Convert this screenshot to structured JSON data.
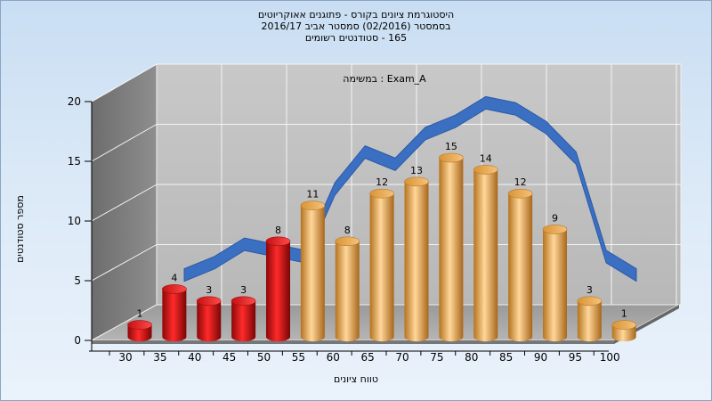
{
  "chart_data": {
    "type": "bar",
    "title_lines": [
      "היסטוגרמת ציונים בקורס - פתוגנים אאוקריוטים",
      "בסמסטר  (02/2016)  סמסטר אביב 2016/17",
      "165 - סטודנטים רשומים"
    ],
    "series_label": "במשימה : Exam_A",
    "xlabel": "טווח ציונים",
    "ylabel": "מספר סטודנטים",
    "categories": [
      "30",
      "35",
      "40",
      "45",
      "50",
      "55",
      "60",
      "65",
      "70",
      "75",
      "80",
      "85",
      "90",
      "95",
      "100"
    ],
    "values": [
      1,
      4,
      3,
      3,
      8,
      11,
      8,
      12,
      13,
      15,
      14,
      12,
      9,
      3,
      1
    ],
    "bar_colors": [
      "#e0161b",
      "#e0161b",
      "#e0161b",
      "#e0161b",
      "#e0161b",
      "#e8a24a",
      "#e8a24a",
      "#e8a24a",
      "#e8a24a",
      "#e8a24a",
      "#e8a24a",
      "#e8a24a",
      "#e8a24a",
      "#e8a24a",
      "#e8a24a"
    ],
    "yticks": [
      0,
      5,
      10,
      15,
      20
    ],
    "ylim": [
      0,
      20
    ],
    "curve": [
      3,
      4,
      5.5,
      5,
      4.5,
      10,
      13,
      12,
      14.5,
      15.5,
      17,
      16.5,
      15,
      12.5,
      4.5,
      3
    ],
    "curve_color": "#3a6fc2",
    "grid": true
  }
}
